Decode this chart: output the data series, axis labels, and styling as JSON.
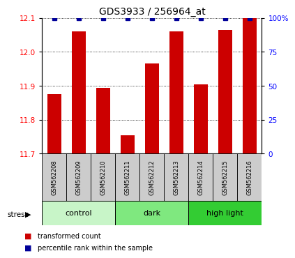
{
  "title": "GDS3933 / 256964_at",
  "samples": [
    "GSM562208",
    "GSM562209",
    "GSM562210",
    "GSM562211",
    "GSM562212",
    "GSM562213",
    "GSM562214",
    "GSM562215",
    "GSM562216"
  ],
  "red_values": [
    11.875,
    12.06,
    11.895,
    11.755,
    11.965,
    12.06,
    11.905,
    12.065,
    12.1
  ],
  "blue_values": [
    100,
    100,
    100,
    100,
    100,
    100,
    100,
    100,
    100
  ],
  "ylim_left": [
    11.7,
    12.1
  ],
  "ylim_right": [
    0,
    100
  ],
  "yticks_left": [
    11.7,
    11.8,
    11.9,
    12.0,
    12.1
  ],
  "yticks_right": [
    0,
    25,
    50,
    75,
    100
  ],
  "groups": [
    {
      "label": "control",
      "indices": [
        0,
        1,
        2
      ],
      "color": "#c8f5c8"
    },
    {
      "label": "dark",
      "indices": [
        3,
        4,
        5
      ],
      "color": "#7fe87f"
    },
    {
      "label": "high light",
      "indices": [
        6,
        7,
        8
      ],
      "color": "#33cc33"
    }
  ],
  "stress_label": "stress",
  "legend_red": "transformed count",
  "legend_blue": "percentile rank within the sample",
  "bar_color": "#cc0000",
  "dot_color": "#000099",
  "background_color": "#ffffff",
  "sample_box_color": "#cccccc",
  "bar_width": 0.55
}
